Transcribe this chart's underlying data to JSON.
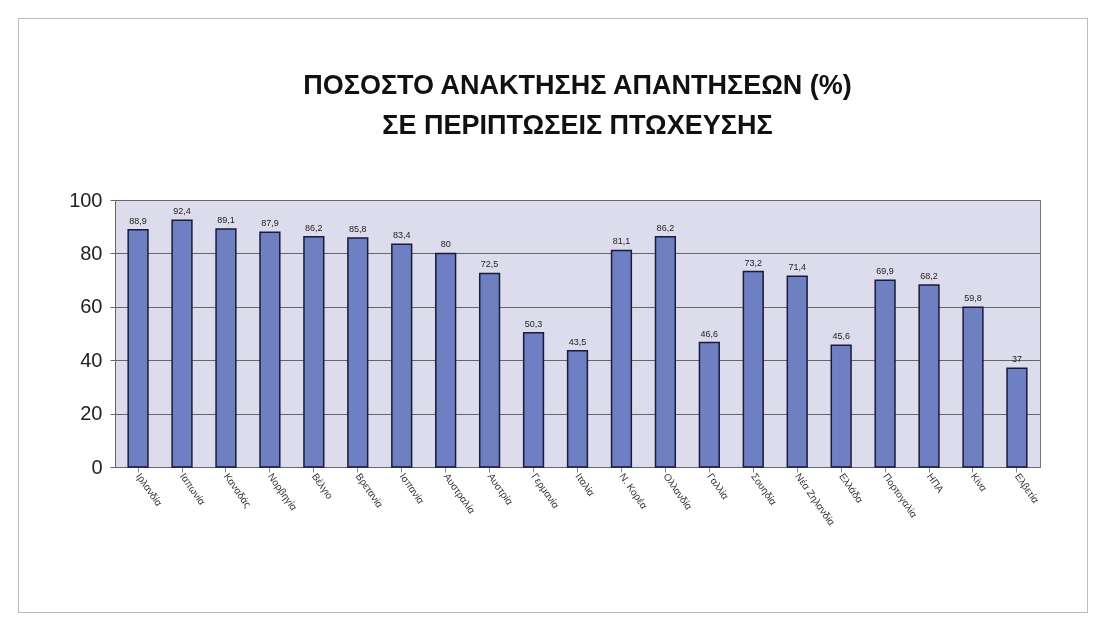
{
  "chart_data": {
    "type": "bar",
    "title": "ΠΟΣΟΣΤΟ ΑΝΑΚΤΗΣΗΣ ΑΠΑΝΤΗΣΕΩΝ (%)\nΣΕ ΠΕΡΙΠΤΩΣΕΙΣ ΠΤΩΧΕΥΣΗΣ",
    "categories": [
      "Ιρλανδία",
      "Ιαπωνία",
      "Καναδάς",
      "Νορβηγία",
      "Βέλγιο",
      "Βρετανία",
      "Ισπανία",
      "Αυστραλία",
      "Αυστρία",
      "Γερμανία",
      "Ιταλία",
      "Ν. Κορέα",
      "Ολλανδία",
      "Γαλλία",
      "Σουηδία",
      "Νέα Ζηλανδία",
      "Ελλάδα",
      "Πορτογαλία",
      "ΗΠΑ",
      "Κίνα",
      "Ελβετία"
    ],
    "values": [
      88.9,
      92.4,
      89.1,
      87.9,
      86.2,
      85.8,
      83.4,
      80,
      72.5,
      50.3,
      43.5,
      81.1,
      86.2,
      46.6,
      73.2,
      71.4,
      45.6,
      69.9,
      68.2,
      59.8,
      37
    ],
    "color": "#6e7fc2",
    "ylim": [
      0,
      100
    ],
    "yticks": [
      0,
      20,
      40,
      60,
      80,
      100
    ],
    "grid": "y",
    "value_labels": [
      "88,9",
      "92,4",
      "89,1",
      "87,9",
      "86,2",
      "85,8",
      "83,4",
      "80",
      "72,5",
      "50,3",
      "43,5",
      "81,1",
      "86,2",
      "46,6",
      "73,2",
      "71,4",
      "45,6",
      "69,9",
      "68,2",
      "59,8",
      "37"
    ]
  }
}
